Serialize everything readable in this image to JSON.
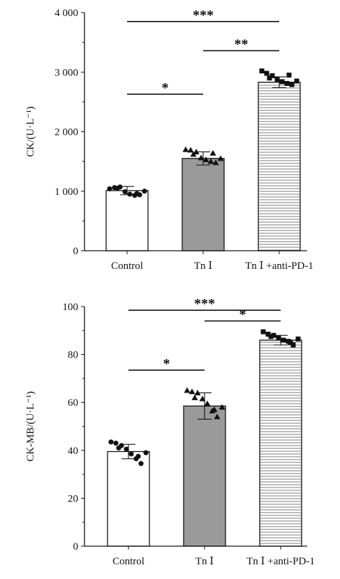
{
  "chart_data": [
    {
      "type": "bar",
      "title": "",
      "ylabel": "CK/(U·L⁻¹)",
      "xlabel": "",
      "categories": [
        "Control",
        "Tn Ⅰ",
        "Tn Ⅰ +anti-PD-1"
      ],
      "ylim": [
        0,
        4000
      ],
      "yticks": [
        {
          "value": 0,
          "label": "0"
        },
        {
          "value": 1000,
          "label": "1 000"
        },
        {
          "value": 2000,
          "label": "2 000"
        },
        {
          "value": 3000,
          "label": "3 000"
        },
        {
          "value": 4000,
          "label": "4 000"
        }
      ],
      "values": [
        1010,
        1550,
        2830
      ],
      "errors": [
        70,
        110,
        90
      ],
      "points": [
        [
          1040,
          1060,
          1070,
          990,
          950,
          930,
          940,
          1000,
          1050,
          960
        ],
        [
          1700,
          1690,
          1660,
          1560,
          1530,
          1500,
          1480,
          1550,
          1620,
          1640
        ],
        [
          3020,
          2980,
          2940,
          2880,
          2840,
          2810,
          2790,
          2850,
          2900,
          2950
        ]
      ],
      "markers": [
        "circle",
        "triangle",
        "square"
      ],
      "fills": [
        "#ffffff",
        "#9a9a9a",
        "hatch"
      ],
      "significance": [
        {
          "from": 0,
          "to": 2,
          "label": "***",
          "y": 3850
        },
        {
          "from": 1,
          "to": 2,
          "label": "**",
          "y": 3360
        },
        {
          "from": 0,
          "to": 1,
          "label": "*",
          "y": 2630
        }
      ]
    },
    {
      "type": "bar",
      "title": "",
      "ylabel": "CK-MB/(U·L⁻¹)",
      "xlabel": "",
      "categories": [
        "Control",
        "Tn Ⅰ",
        "Tn Ⅰ +anti-PD-1"
      ],
      "ylim": [
        0,
        100
      ],
      "yticks": [
        {
          "value": 0,
          "label": "0"
        },
        {
          "value": 20,
          "label": "20"
        },
        {
          "value": 40,
          "label": "40"
        },
        {
          "value": 60,
          "label": "60"
        },
        {
          "value": 80,
          "label": "80"
        },
        {
          "value": 100,
          "label": "100"
        }
      ],
      "values": [
        39.5,
        58.5,
        86
      ],
      "errors": [
        3,
        5.5,
        2
      ],
      "points": [
        [
          43.5,
          43,
          42,
          40.5,
          38.5,
          36.5,
          34.5,
          39,
          41,
          37.5
        ],
        [
          65,
          64.5,
          64,
          61.5,
          59.5,
          56.5,
          54,
          58,
          62,
          57
        ],
        [
          89.5,
          88.5,
          88,
          87,
          86,
          85.5,
          84,
          86.5,
          87.5,
          85
        ]
      ],
      "markers": [
        "circle",
        "triangle",
        "square"
      ],
      "fills": [
        "#ffffff",
        "#9a9a9a",
        "hatch"
      ],
      "significance": [
        {
          "from": 0,
          "to": 2,
          "label": "***",
          "y": 98.5
        },
        {
          "from": 1,
          "to": 2,
          "label": "*",
          "y": 94
        },
        {
          "from": 0,
          "to": 1,
          "label": "*",
          "y": 73.5
        }
      ]
    }
  ]
}
